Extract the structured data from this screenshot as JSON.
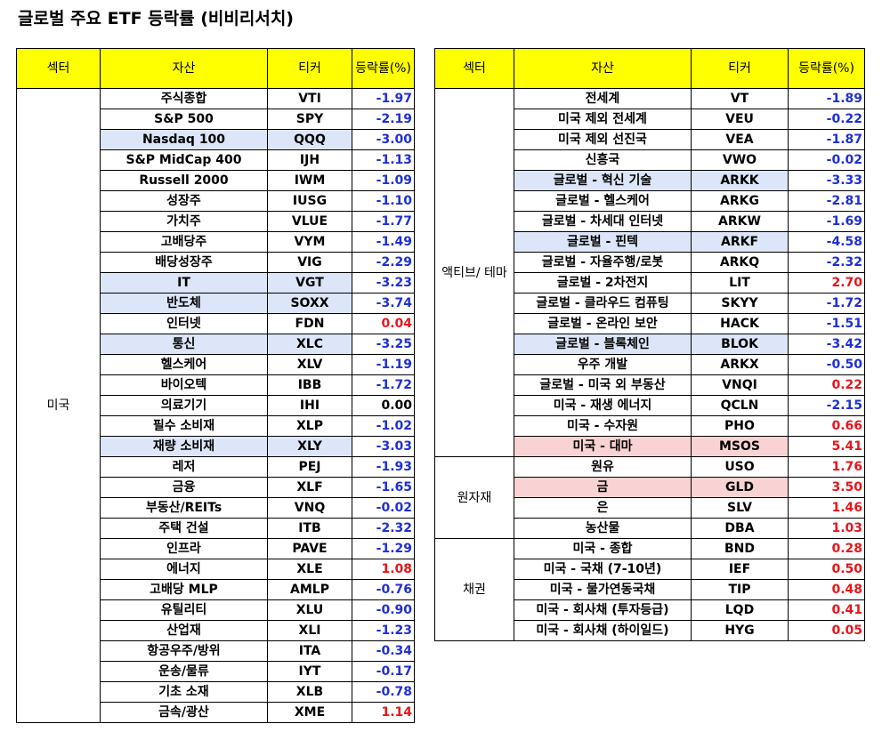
{
  "title": "글로벌 주요 ETF 등락률 (비비리서치)",
  "headers": {
    "sector": "섹터",
    "asset": "자산",
    "ticker": "티커",
    "return": "등락률(%)"
  },
  "left_table": {
    "groups": [
      {
        "sector": "미국",
        "rows": [
          {
            "asset": "주식종합",
            "ticker": "VTI",
            "ret": "-1.97",
            "hl": ""
          },
          {
            "asset": "S&P 500",
            "ticker": "SPY",
            "ret": "-2.19",
            "hl": ""
          },
          {
            "asset": "Nasdaq 100",
            "ticker": "QQQ",
            "ret": "-3.00",
            "hl": "blue"
          },
          {
            "asset": "S&P MidCap 400",
            "ticker": "IJH",
            "ret": "-1.13",
            "hl": ""
          },
          {
            "asset": "Russell 2000",
            "ticker": "IWM",
            "ret": "-1.09",
            "hl": ""
          },
          {
            "asset": "성장주",
            "ticker": "IUSG",
            "ret": "-1.10",
            "hl": ""
          },
          {
            "asset": "가치주",
            "ticker": "VLUE",
            "ret": "-1.77",
            "hl": ""
          },
          {
            "asset": "고배당주",
            "ticker": "VYM",
            "ret": "-1.49",
            "hl": ""
          },
          {
            "asset": "배당성장주",
            "ticker": "VIG",
            "ret": "-2.29",
            "hl": ""
          },
          {
            "asset": "IT",
            "ticker": "VGT",
            "ret": "-3.23",
            "hl": "blue"
          },
          {
            "asset": "반도체",
            "ticker": "SOXX",
            "ret": "-3.74",
            "hl": "blue"
          },
          {
            "asset": "인터넷",
            "ticker": "FDN",
            "ret": "0.04",
            "hl": ""
          },
          {
            "asset": "통신",
            "ticker": "XLC",
            "ret": "-3.25",
            "hl": "blue"
          },
          {
            "asset": "헬스케어",
            "ticker": "XLV",
            "ret": "-1.19",
            "hl": ""
          },
          {
            "asset": "바이오텍",
            "ticker": "IBB",
            "ret": "-1.72",
            "hl": ""
          },
          {
            "asset": "의료기기",
            "ticker": "IHI",
            "ret": "0.00",
            "hl": ""
          },
          {
            "asset": "필수 소비재",
            "ticker": "XLP",
            "ret": "-1.02",
            "hl": ""
          },
          {
            "asset": "재량 소비재",
            "ticker": "XLY",
            "ret": "-3.03",
            "hl": "blue"
          },
          {
            "asset": "레저",
            "ticker": "PEJ",
            "ret": "-1.93",
            "hl": ""
          },
          {
            "asset": "금융",
            "ticker": "XLF",
            "ret": "-1.65",
            "hl": ""
          },
          {
            "asset": "부동산/REITs",
            "ticker": "VNQ",
            "ret": "-0.02",
            "hl": ""
          },
          {
            "asset": "주택 건설",
            "ticker": "ITB",
            "ret": "-2.32",
            "hl": ""
          },
          {
            "asset": "인프라",
            "ticker": "PAVE",
            "ret": "-1.29",
            "hl": ""
          },
          {
            "asset": "에너지",
            "ticker": "XLE",
            "ret": "1.08",
            "hl": ""
          },
          {
            "asset": "고배당 MLP",
            "ticker": "AMLP",
            "ret": "-0.76",
            "hl": ""
          },
          {
            "asset": "유틸리티",
            "ticker": "XLU",
            "ret": "-0.90",
            "hl": ""
          },
          {
            "asset": "산업재",
            "ticker": "XLI",
            "ret": "-1.23",
            "hl": ""
          },
          {
            "asset": "항공우주/방위",
            "ticker": "ITA",
            "ret": "-0.34",
            "hl": ""
          },
          {
            "asset": "운송/물류",
            "ticker": "IYT",
            "ret": "-0.17",
            "hl": ""
          },
          {
            "asset": "기초 소재",
            "ticker": "XLB",
            "ret": "-0.78",
            "hl": ""
          },
          {
            "asset": "금속/광산",
            "ticker": "XME",
            "ret": "1.14",
            "hl": ""
          }
        ]
      }
    ]
  },
  "right_table": {
    "groups": [
      {
        "sector": "액티브/ 테마",
        "rows": [
          {
            "asset": "전세계",
            "ticker": "VT",
            "ret": "-1.89",
            "hl": ""
          },
          {
            "asset": "미국 제외 전세계",
            "ticker": "VEU",
            "ret": "-0.22",
            "hl": ""
          },
          {
            "asset": "미국 제외 선진국",
            "ticker": "VEA",
            "ret": "-1.87",
            "hl": ""
          },
          {
            "asset": "신흥국",
            "ticker": "VWO",
            "ret": "-0.02",
            "hl": ""
          },
          {
            "asset": "글로벌 - 혁신 기술",
            "ticker": "ARKK",
            "ret": "-3.33",
            "hl": "blue"
          },
          {
            "asset": "글로벌 - 헬스케어",
            "ticker": "ARKG",
            "ret": "-2.81",
            "hl": ""
          },
          {
            "asset": "글로벌 - 차세대 인터넷",
            "ticker": "ARKW",
            "ret": "-1.69",
            "hl": ""
          },
          {
            "asset": "글로벌 - 핀텍",
            "ticker": "ARKF",
            "ret": "-4.58",
            "hl": "blue"
          },
          {
            "asset": "글로벌 - 자율주행/로봇",
            "ticker": "ARKQ",
            "ret": "-2.32",
            "hl": ""
          },
          {
            "asset": "글로벌 - 2차전지",
            "ticker": "LIT",
            "ret": "2.70",
            "hl": ""
          },
          {
            "asset": "글로벌 - 클라우드 컴퓨팅",
            "ticker": "SKYY",
            "ret": "-1.72",
            "hl": ""
          },
          {
            "asset": "글로벌 - 온라인 보안",
            "ticker": "HACK",
            "ret": "-1.51",
            "hl": ""
          },
          {
            "asset": "글로벌 - 블록체인",
            "ticker": "BLOK",
            "ret": "-3.42",
            "hl": "blue"
          },
          {
            "asset": "우주 개발",
            "ticker": "ARKX",
            "ret": "-0.50",
            "hl": ""
          },
          {
            "asset": "글로벌 - 미국 외 부동산",
            "ticker": "VNQI",
            "ret": "0.22",
            "hl": ""
          },
          {
            "asset": "미국 - 재생 에너지",
            "ticker": "QCLN",
            "ret": "-2.15",
            "hl": ""
          },
          {
            "asset": "미국 - 수자원",
            "ticker": "PHO",
            "ret": "0.66",
            "hl": ""
          },
          {
            "asset": "미국 - 대마",
            "ticker": "MSOS",
            "ret": "5.41",
            "hl": "pink"
          }
        ]
      },
      {
        "sector": "원자재",
        "rows": [
          {
            "asset": "원유",
            "ticker": "USO",
            "ret": "1.76",
            "hl": ""
          },
          {
            "asset": "금",
            "ticker": "GLD",
            "ret": "3.50",
            "hl": "pink"
          },
          {
            "asset": "은",
            "ticker": "SLV",
            "ret": "1.46",
            "hl": ""
          },
          {
            "asset": "농산물",
            "ticker": "DBA",
            "ret": "1.03",
            "hl": ""
          }
        ]
      },
      {
        "sector": "채권",
        "rows": [
          {
            "asset": "미국 - 종합",
            "ticker": "BND",
            "ret": "0.28",
            "hl": ""
          },
          {
            "asset": "미국 - 국채 (7-10년)",
            "ticker": "IEF",
            "ret": "0.50",
            "hl": ""
          },
          {
            "asset": "미국 - 물가연동국채",
            "ticker": "TIP",
            "ret": "0.48",
            "hl": ""
          },
          {
            "asset": "미국 - 회사채 (투자등급)",
            "ticker": "LQD",
            "ret": "0.41",
            "hl": ""
          },
          {
            "asset": "미국 - 회사채 (하이일드)",
            "ticker": "HYG",
            "ret": "0.05",
            "hl": ""
          }
        ]
      }
    ]
  },
  "colors": {
    "header_bg": "#ffff00",
    "highlight_blue": "#dce6f8",
    "highlight_pink": "#f9d3d3",
    "negative": "#1f2fd6",
    "positive": "#e8151b"
  }
}
